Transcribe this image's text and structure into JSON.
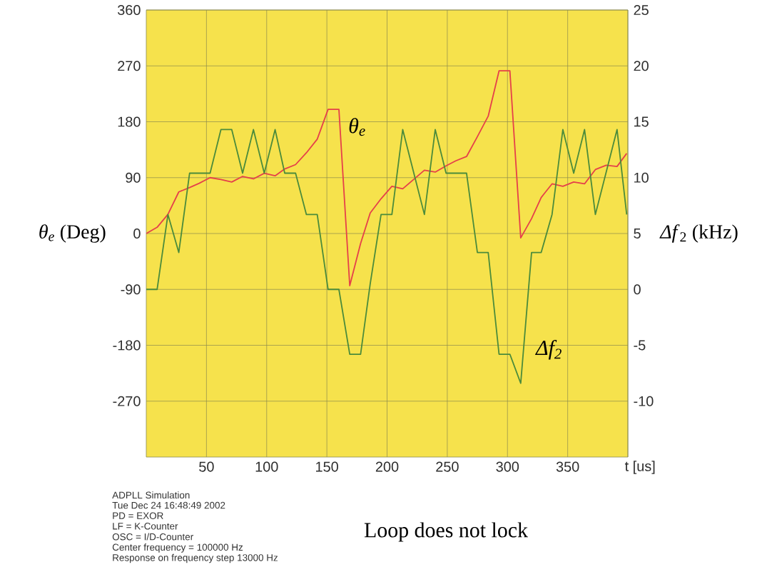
{
  "chart_data": {
    "type": "line",
    "xlabel": "t [us]",
    "ylabel": "*θ$_{e}$* (Deg)",
    "y2label": "*Δf*$_{2}$ (kHz)",
    "x": [
      0,
      9,
      18,
      27,
      36,
      44,
      53,
      62,
      71,
      80,
      89,
      98,
      107,
      115,
      124,
      133,
      142,
      151,
      160,
      169,
      178,
      186,
      195,
      204,
      213,
      222,
      231,
      240,
      249,
      257,
      266,
      275,
      284,
      293,
      302,
      311,
      320,
      328,
      337,
      346,
      355,
      364,
      373,
      382,
      391,
      399
    ],
    "series": [
      {
        "name": "θ$_{e}$",
        "color": "#e5404a",
        "values": [
          0,
          10,
          31,
          67,
          74,
          81,
          90,
          87,
          83,
          92,
          88,
          97,
          93,
          104,
          111,
          130,
          152,
          200,
          200,
          -84,
          -16,
          33,
          56,
          76,
          72,
          87,
          102,
          99,
          109,
          117,
          124,
          156,
          189,
          262,
          262,
          -7,
          24,
          58,
          80,
          76,
          83,
          80,
          103,
          110,
          108,
          129
        ]
      },
      {
        "name": "Δf$_{2}$",
        "color": "#4b8b3b",
        "axis": "y2",
        "values": [
          0,
          0,
          6.7,
          3.3,
          10.4,
          10.4,
          10.4,
          14.3,
          14.3,
          10.4,
          14.3,
          10.4,
          14.3,
          10.4,
          10.4,
          6.7,
          6.7,
          0,
          0,
          -5.8,
          -5.8,
          0.5,
          6.7,
          6.7,
          14.3,
          10.5,
          6.7,
          14.3,
          10.4,
          10.4,
          10.4,
          3.3,
          3.3,
          -5.8,
          -5.8,
          -8.4,
          3.3,
          3.3,
          6.7,
          14.3,
          10.4,
          14.3,
          6.7,
          10.5,
          14.3,
          6.7
        ]
      }
    ],
    "xlim": [
      0,
      400
    ],
    "ylim": [
      -360,
      360
    ],
    "y2lim": [
      -15,
      25
    ],
    "xticks": [
      50,
      100,
      150,
      200,
      250,
      300,
      350
    ],
    "yticks": [
      -270,
      -180,
      -90,
      0,
      90,
      180,
      270,
      360
    ],
    "y2ticks": [
      -10,
      -5,
      0,
      5,
      10,
      15,
      20,
      25
    ],
    "grid": true,
    "annotations": [
      "ADPLL Simulation",
      "Tue Dec 24 16:48:49 2002",
      "PD = EXOR",
      "LF = K-Counter",
      "OSC = I/D-Counter",
      "Center frequency = 100000 Hz",
      "Response on frequency step 13000 Hz",
      "Loop does not lock"
    ]
  }
}
